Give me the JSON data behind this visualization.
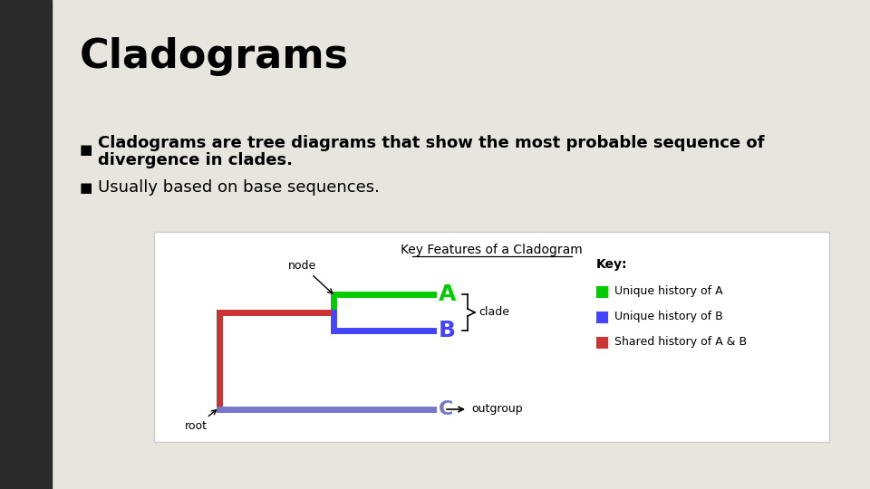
{
  "bg_color": "#e8e4de",
  "white_box_color": "#ffffff",
  "title": "Cladograms",
  "title_fontsize": 32,
  "left_bar_color": "#2a2a2a",
  "bullet1_line1": "Cladograms are tree diagrams that show the most probable sequence of",
  "bullet1_line2": "divergence in clades.",
  "bullet2": "Usually based on base sequences.",
  "bullet_fontsize": 13,
  "bullet_marker": "■",
  "diagram_title": "Key Features of a Cladogram",
  "green_color": "#00cc00",
  "blue_color": "#4444ff",
  "red_color": "#cc3333",
  "purple_color": "#7777cc",
  "label_A": "A",
  "label_B": "B",
  "label_C": "C",
  "label_node": "node",
  "label_root": "root",
  "label_clade": "clade",
  "label_outgroup": "outgroup",
  "key_title": "Key:",
  "key1": "Unique history of A",
  "key2": "Unique history of B",
  "key3": "Shared history of A & B",
  "line_width": 5
}
